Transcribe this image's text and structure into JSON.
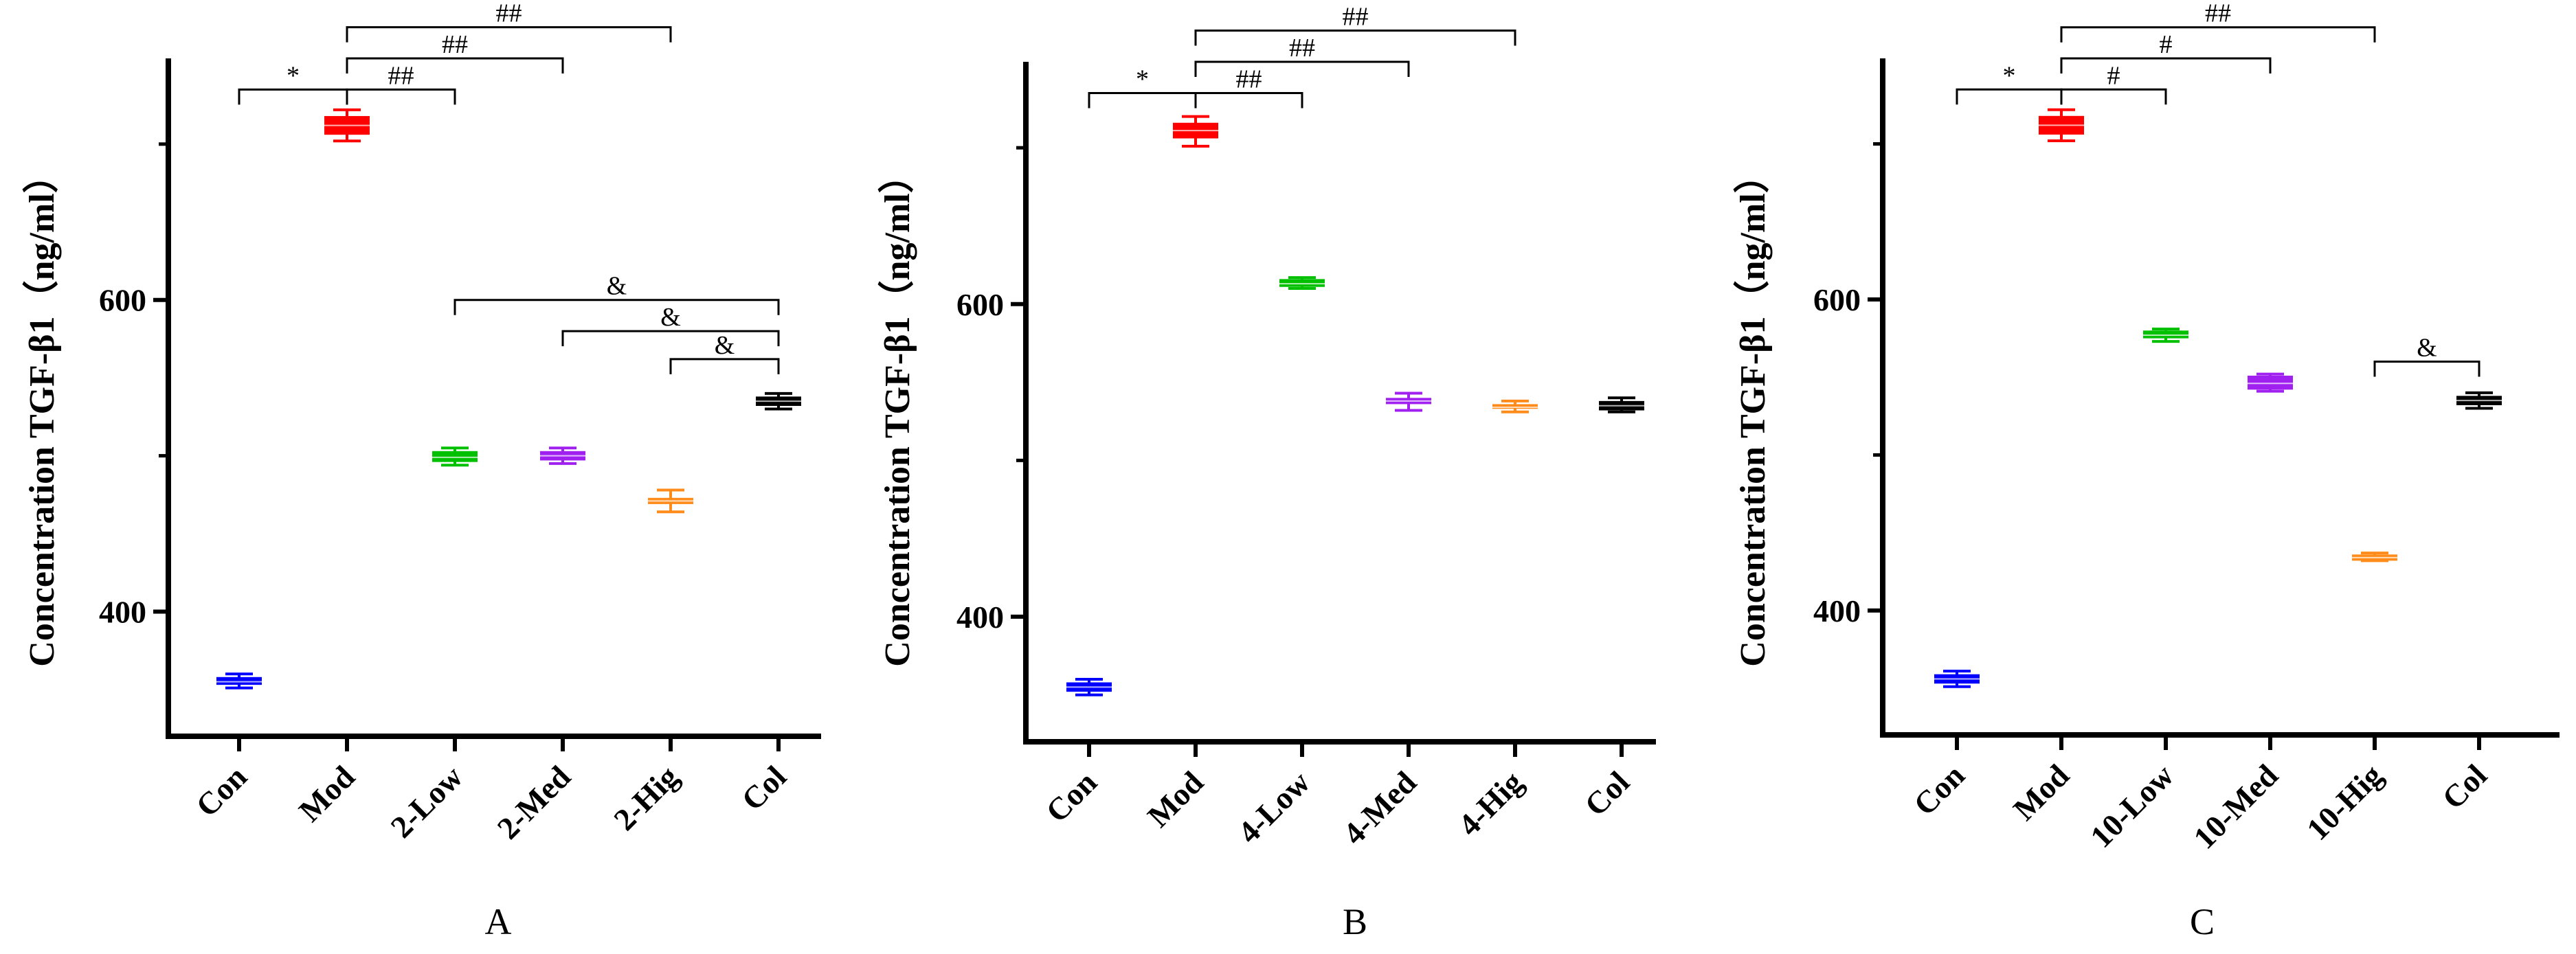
{
  "chart_data": [
    {
      "type": "box",
      "panel_label": "A",
      "ylabel": "Concentration TGF-β1（ng/ml）",
      "ylim": [
        320,
        755
      ],
      "yticks": [
        400,
        600
      ],
      "categories": [
        "Con",
        "Mod",
        "2-Low",
        "2-Med",
        "2-Hig",
        "Col"
      ],
      "colors": [
        "#0000ff",
        "#ff0000",
        "#00c000",
        "#a020f0",
        "#ff8c1a",
        "#000000"
      ],
      "boxes": [
        {
          "min": 351,
          "q1": 353,
          "median": 355,
          "q3": 358,
          "max": 360
        },
        {
          "min": 702,
          "q1": 706,
          "median": 712,
          "q3": 718,
          "max": 722
        },
        {
          "min": 494,
          "q1": 496,
          "median": 499,
          "q3": 503,
          "max": 505
        },
        {
          "min": 495,
          "q1": 497,
          "median": 500,
          "q3": 503,
          "max": 505
        },
        {
          "min": 464,
          "q1": 469,
          "median": 471,
          "q3": 473,
          "max": 478
        },
        {
          "min": 530,
          "q1": 532,
          "median": 535,
          "q3": 538,
          "max": 540
        }
      ],
      "significance": [
        {
          "from": 0,
          "to": 1,
          "label": "*",
          "level": 735
        },
        {
          "from": 1,
          "to": 2,
          "label": "##",
          "level": 735
        },
        {
          "from": 1,
          "to": 3,
          "label": "##",
          "level": 755
        },
        {
          "from": 1,
          "to": 4,
          "label": "##",
          "level": 775
        },
        {
          "from": 2,
          "to": 5,
          "label": "&",
          "level": 600
        },
        {
          "from": 3,
          "to": 5,
          "label": "&",
          "level": 580
        },
        {
          "from": 4,
          "to": 5,
          "label": "&",
          "level": 562
        }
      ]
    },
    {
      "type": "box",
      "panel_label": "B",
      "ylabel": "Concentration TGF-β1（ng/ml）",
      "ylim": [
        320,
        755
      ],
      "yticks": [
        400,
        600
      ],
      "categories": [
        "Con",
        "Mod",
        "4-Low",
        "4-Med",
        "4-Hig",
        "Col"
      ],
      "colors": [
        "#0000ff",
        "#ff0000",
        "#00c000",
        "#a020f0",
        "#ff8c1a",
        "#000000"
      ],
      "boxes": [
        {
          "min": 350,
          "q1": 352,
          "median": 355,
          "q3": 358,
          "max": 360
        },
        {
          "min": 701,
          "q1": 706,
          "median": 711,
          "q3": 716,
          "max": 720
        },
        {
          "min": 610,
          "q1": 611,
          "median": 613,
          "q3": 616,
          "max": 617
        },
        {
          "min": 532,
          "q1": 536,
          "median": 538,
          "q3": 540,
          "max": 543
        },
        {
          "min": 531,
          "q1": 533,
          "median": 534,
          "q3": 536,
          "max": 538
        },
        {
          "min": 531,
          "q1": 532,
          "median": 535,
          "q3": 538,
          "max": 540
        }
      ],
      "significance": [
        {
          "from": 0,
          "to": 1,
          "label": "*",
          "level": 735
        },
        {
          "from": 1,
          "to": 2,
          "label": "##",
          "level": 735
        },
        {
          "from": 1,
          "to": 3,
          "label": "##",
          "level": 755
        },
        {
          "from": 1,
          "to": 4,
          "label": "##",
          "level": 775
        }
      ]
    },
    {
      "type": "box",
      "panel_label": "C",
      "ylabel": "Concentration TGF-β1（ng/ml）",
      "ylim": [
        320,
        755
      ],
      "yticks": [
        400,
        600
      ],
      "categories": [
        "Con",
        "Mod",
        "10-Low",
        "10-Med",
        "10-Hig",
        "Col"
      ],
      "colors": [
        "#0000ff",
        "#ff0000",
        "#00c000",
        "#a020f0",
        "#ff8c1a",
        "#000000"
      ],
      "boxes": [
        {
          "min": 351,
          "q1": 353,
          "median": 356,
          "q3": 359,
          "max": 361
        },
        {
          "min": 702,
          "q1": 706,
          "median": 712,
          "q3": 718,
          "max": 722
        },
        {
          "min": 573,
          "q1": 575,
          "median": 577,
          "q3": 580,
          "max": 581
        },
        {
          "min": 541,
          "q1": 542,
          "median": 546,
          "q3": 551,
          "max": 552
        },
        {
          "min": 432,
          "q1": 432,
          "median": 434,
          "q3": 436,
          "max": 437
        },
        {
          "min": 530,
          "q1": 532,
          "median": 535,
          "q3": 538,
          "max": 540
        }
      ],
      "significance": [
        {
          "from": 0,
          "to": 1,
          "label": "*",
          "level": 735
        },
        {
          "from": 1,
          "to": 2,
          "label": "#",
          "level": 735
        },
        {
          "from": 1,
          "to": 3,
          "label": "#",
          "level": 755
        },
        {
          "from": 1,
          "to": 4,
          "label": "##",
          "level": 775
        },
        {
          "from": 4,
          "to": 5,
          "label": "&",
          "level": 560
        }
      ]
    }
  ]
}
